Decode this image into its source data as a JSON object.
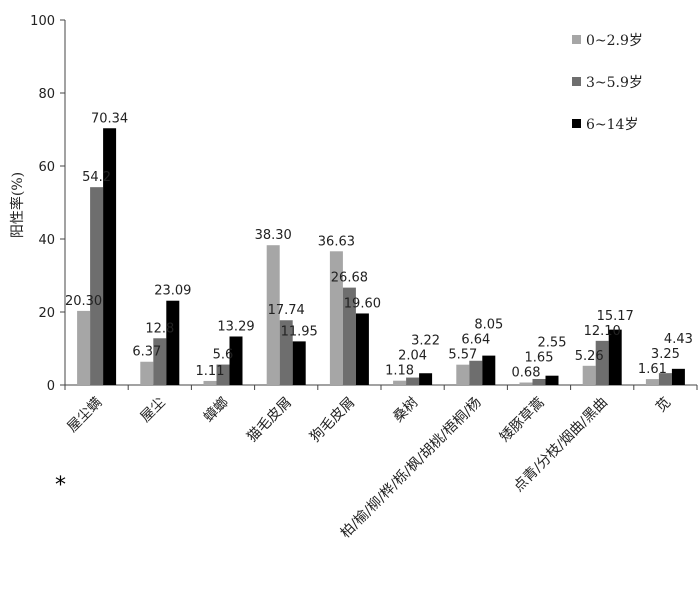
{
  "chart_data": {
    "type": "bar",
    "title": "",
    "xlabel": "",
    "ylabel": "阳性率(%)",
    "ylim": [
      0,
      100
    ],
    "yticks": [
      "0",
      "20",
      "40",
      "60",
      "80",
      "100"
    ],
    "legend_position": "top-right",
    "categories": [
      "屋尘螨",
      "屋尘",
      "蟑螂",
      "猫毛皮屑",
      "狗毛皮屑",
      "桑树",
      "柏/榆/柳/桦/栎/枫/胡桃/梧桐/杨",
      "矮豚草蒿",
      "点青/分枝/烟曲/黑曲",
      "苋"
    ],
    "series": [
      {
        "name": "0~2.9岁",
        "color": "#a6a6a6",
        "values": [
          20.3,
          6.37,
          1.11,
          38.3,
          36.63,
          1.18,
          5.57,
          0.68,
          5.26,
          1.61
        ],
        "labels": [
          "20.30",
          "6.37",
          "1.11",
          "38.30",
          "36.63",
          "1.18",
          "5.57",
          "0.68",
          "5.26",
          "1.61"
        ]
      },
      {
        "name": "3~5.9岁",
        "color": "#6e6e6e",
        "values": [
          54.2,
          12.8,
          5.6,
          17.74,
          26.68,
          2.04,
          6.64,
          1.65,
          12.1,
          3.25
        ],
        "labels": [
          "54.2",
          "12.8",
          "5.6",
          "17.74",
          "26.68",
          "2.04",
          "6.64",
          "1.65",
          "12.10",
          "3.25"
        ]
      },
      {
        "name": "6~14岁",
        "color": "#000000",
        "values": [
          70.34,
          23.09,
          13.29,
          11.95,
          19.6,
          3.22,
          8.05,
          2.55,
          15.17,
          4.43
        ],
        "labels": [
          "70.34",
          "23.09",
          "13.29",
          "11.95",
          "19.60",
          "3.22",
          "8.05",
          "2.55",
          "15.17",
          "4.43"
        ]
      }
    ],
    "annotations": [
      "*"
    ]
  }
}
